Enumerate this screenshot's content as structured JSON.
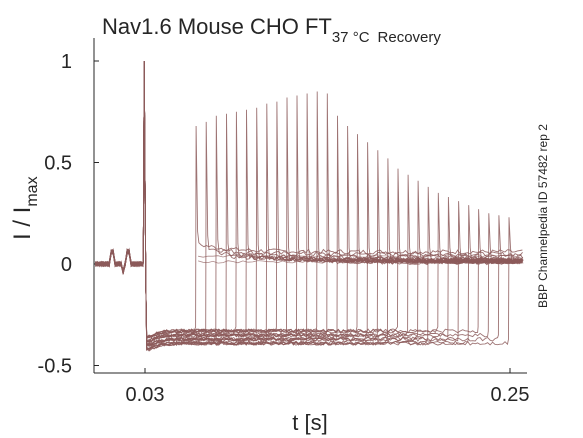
{
  "chart_data": {
    "type": "line",
    "title": {
      "main": "Nav1.6  Mouse  CHO FT",
      "subscript_temp": "37 °C",
      "subscript_protocol": "Recovery"
    },
    "xlabel": "t [s]",
    "ylabel": {
      "main": "I / I",
      "subscript": "max"
    },
    "side_label": "BBP Channelpedia ID 57482 rep 2",
    "xlim": [
      0.0,
      0.26
    ],
    "ylim": [
      -0.52,
      1.12
    ],
    "xticks": [
      {
        "value": 0.03,
        "label": "0.03"
      },
      {
        "value": 0.25,
        "label": "0.25"
      }
    ],
    "yticks": [
      {
        "value": -0.5,
        "label": "-0.5"
      },
      {
        "value": 0,
        "label": "0"
      },
      {
        "value": 0.5,
        "label": "0.5"
      },
      {
        "value": 1,
        "label": "1"
      }
    ],
    "grid": false,
    "line_color": "#8c5a5a",
    "conditioning_pulse": {
      "t_start": 0.029,
      "t_end": 0.06,
      "peak": 1.0,
      "steady": -0.33
    },
    "test_peaks": [
      {
        "t": 0.0605,
        "peak": 0.68
      },
      {
        "t": 0.0666,
        "peak": 0.7
      },
      {
        "t": 0.0727,
        "peak": 0.73
      },
      {
        "t": 0.0788,
        "peak": 0.74
      },
      {
        "t": 0.0848,
        "peak": 0.75
      },
      {
        "t": 0.0909,
        "peak": 0.76
      },
      {
        "t": 0.097,
        "peak": 0.77
      },
      {
        "t": 0.1031,
        "peak": 0.79
      },
      {
        "t": 0.1092,
        "peak": 0.8
      },
      {
        "t": 0.1153,
        "peak": 0.82
      },
      {
        "t": 0.1213,
        "peak": 0.83
      },
      {
        "t": 0.1274,
        "peak": 0.84
      },
      {
        "t": 0.1335,
        "peak": 0.85
      },
      {
        "t": 0.1396,
        "peak": 0.84
      },
      {
        "t": 0.1457,
        "peak": 0.73
      },
      {
        "t": 0.1518,
        "peak": 0.68
      },
      {
        "t": 0.1578,
        "peak": 0.64
      },
      {
        "t": 0.1639,
        "peak": 0.6
      },
      {
        "t": 0.17,
        "peak": 0.56
      },
      {
        "t": 0.1761,
        "peak": 0.52
      },
      {
        "t": 0.1822,
        "peak": 0.47
      },
      {
        "t": 0.1883,
        "peak": 0.44
      },
      {
        "t": 0.1943,
        "peak": 0.41
      },
      {
        "t": 0.2004,
        "peak": 0.38
      },
      {
        "t": 0.2065,
        "peak": 0.35
      },
      {
        "t": 0.2126,
        "peak": 0.33
      },
      {
        "t": 0.2187,
        "peak": 0.31
      },
      {
        "t": 0.2248,
        "peak": 0.29
      },
      {
        "t": 0.2308,
        "peak": 0.27
      },
      {
        "t": 0.2369,
        "peak": 0.25
      },
      {
        "t": 0.243,
        "peak": 0.24
      },
      {
        "t": 0.2491,
        "peak": 0.23
      }
    ],
    "sweep_baselines": [
      0.04,
      0.01,
      -0.01,
      -0.03,
      -0.18,
      -0.24,
      -0.28,
      -0.31,
      -0.34,
      -0.37
    ]
  }
}
